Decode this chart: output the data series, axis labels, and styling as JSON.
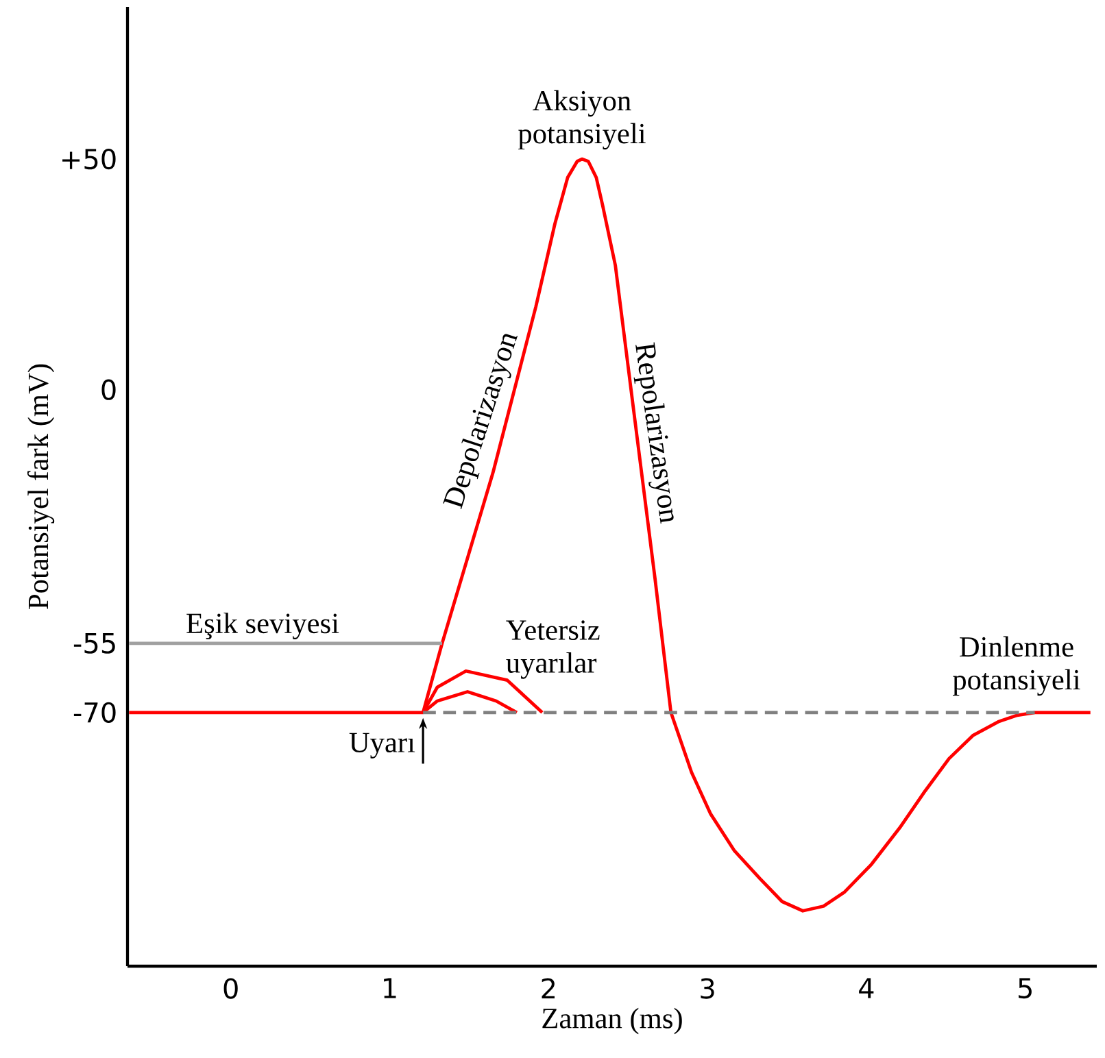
{
  "chart_data": {
    "type": "line",
    "xlabel": "Zaman (ms)",
    "ylabel": "Potansiyel fark (mV)",
    "xlim": [
      -0.65,
      5.45
    ],
    "ylim": [
      -125,
      83
    ],
    "xticks": [
      0,
      1,
      2,
      3,
      4,
      5
    ],
    "yticks": [
      {
        "value": 50,
        "label": "+50"
      },
      0,
      -55,
      -70
    ],
    "marker": "none",
    "series": [
      {
        "color": "#ff0000",
        "line_style": "solid",
        "x": [
          -0.64,
          1.21,
          1.33,
          1.65,
          1.92,
          2.04,
          2.12,
          2.18,
          2.21,
          2.25,
          2.3,
          2.34,
          2.42,
          2.53,
          2.67,
          2.77,
          2.9,
          3.02,
          3.17,
          3.33,
          3.47,
          3.6,
          3.73,
          3.86,
          4.03,
          4.21,
          4.37,
          4.52,
          4.67,
          4.83,
          4.95,
          5.06,
          5.41
        ],
        "values": [
          -70,
          -70,
          -55,
          -18,
          18,
          36,
          46,
          49.5,
          50,
          49.5,
          46,
          40,
          27,
          -3,
          -41,
          -70,
          -83,
          -92,
          -100,
          -106,
          -111,
          -113,
          -112,
          -109,
          -103,
          -95,
          -87,
          -80,
          -75,
          -72,
          -70.6,
          -70,
          -70
        ]
      },
      {
        "color": "#ff0000",
        "line_style": "solid",
        "x": [
          1.21,
          1.3,
          1.48,
          1.74,
          1.96
        ],
        "values": [
          -70,
          -64.5,
          -61,
          -63,
          -70
        ]
      },
      {
        "color": "#ff0000",
        "line_style": "solid",
        "x": [
          1.21,
          1.3,
          1.49,
          1.67,
          1.8
        ],
        "values": [
          -70,
          -67.5,
          -65.5,
          -67.5,
          -70
        ]
      },
      {
        "color": "#808080",
        "line_style": "dashed",
        "x": [
          1.21,
          5.06
        ],
        "values": [
          -70,
          -70
        ]
      },
      {
        "color": "#a0a0a0",
        "line_style": "solid",
        "x": [
          -0.64,
          1.33
        ],
        "values": [
          -55,
          -55
        ]
      }
    ],
    "annotations": [
      {
        "text": "Aksiyon potansiyeli",
        "x": 2.21,
        "y": 50
      },
      {
        "text": "Depolarizasyon",
        "x": 1.7,
        "y": -8
      },
      {
        "text": "Repolarizasyon",
        "x": 2.55,
        "y": -10
      },
      "Yetersiz uyarılar",
      {
        "text": "Dinlenme potansiyeli",
        "x": 5.06,
        "y": -70
      },
      {
        "text": "Eşik seviyesi",
        "x": 0.2,
        "y": -55
      },
      {
        "text": "Uyarı",
        "x": 1.21,
        "y": -70
      }
    ]
  }
}
